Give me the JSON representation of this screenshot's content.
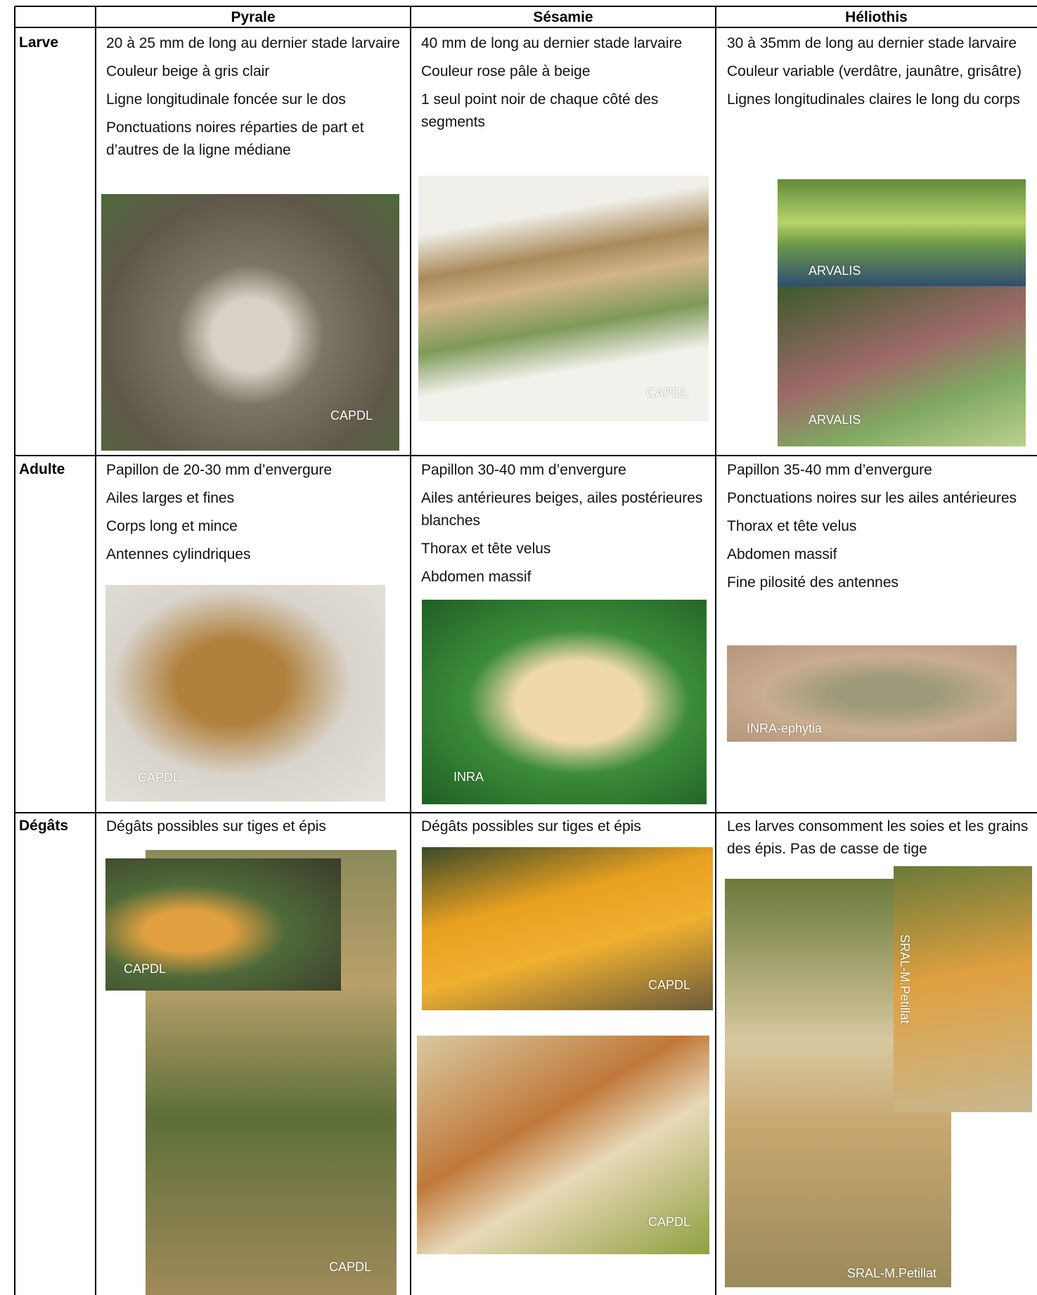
{
  "header": {
    "columns": [
      "Pyrale",
      "Sésamie",
      "Héliothis"
    ]
  },
  "rows": [
    {
      "label": "Larve",
      "cells": [
        {
          "paragraphs": [
            "20 à 25 mm de long au dernier stade larvaire",
            "Couleur beige à gris clair",
            "Ligne longitudinale foncée sur le dos",
            "Ponctuations noires réparties de part et d’autres de la ligne médiane"
          ],
          "images": [
            {
              "credit": "CAPDL"
            }
          ]
        },
        {
          "paragraphs": [
            "40 mm de long au dernier stade larvaire",
            "Couleur rose pâle à beige",
            "1 seul point noir de chaque côté des segments"
          ],
          "images": [
            {
              "credit": "CAPDL"
            }
          ]
        },
        {
          "paragraphs": [
            "30 à 35mm de long au dernier stade larvaire",
            "Couleur variable (verdâtre, jaunâtre, grisâtre)",
            "Lignes longitudinales claires le long du corps"
          ],
          "images": [
            {
              "credit": "ARVALIS"
            },
            {
              "credit": "ARVALIS"
            }
          ]
        }
      ]
    },
    {
      "label": "Adulte",
      "cells": [
        {
          "paragraphs": [
            "Papillon de 20-30 mm d’envergure",
            "Ailes larges et fines",
            "Corps long et mince",
            "Antennes cylindriques"
          ],
          "images": [
            {
              "credit": "CAPDL"
            }
          ]
        },
        {
          "paragraphs": [
            "Papillon 30-40 mm d’envergure",
            "Ailes antérieures beiges, ailes postérieures blanches",
            "Thorax et tête velus",
            "Abdomen massif"
          ],
          "images": [
            {
              "credit": "INRA"
            }
          ]
        },
        {
          "paragraphs": [
            "Papillon 35-40 mm d’envergure",
            "Ponctuations noires sur les ailes antérieures",
            "Thorax et tête velus",
            "Abdomen massif",
            "Fine pilosité des antennes"
          ],
          "images": [
            {
              "credit": "INRA-ephytia"
            }
          ]
        }
      ]
    },
    {
      "label": "Dégâts",
      "cells": [
        {
          "paragraphs": [
            "Dégâts possibles sur tiges et épis"
          ],
          "images": [
            {
              "credit": "CAPDL"
            },
            {
              "credit": "CAPDL"
            }
          ]
        },
        {
          "paragraphs": [
            "Dégâts possibles sur tiges et épis"
          ],
          "images": [
            {
              "credit": "CAPDL"
            },
            {
              "credit": "CAPDL"
            }
          ]
        },
        {
          "paragraphs": [
            "Les larves consomment les soies et les grains des épis. Pas de casse de tige"
          ],
          "images": [
            {
              "credit": "SRAL-M.Petillat"
            },
            {
              "credit": "SRAL-M.Petillat"
            }
          ]
        }
      ]
    }
  ]
}
